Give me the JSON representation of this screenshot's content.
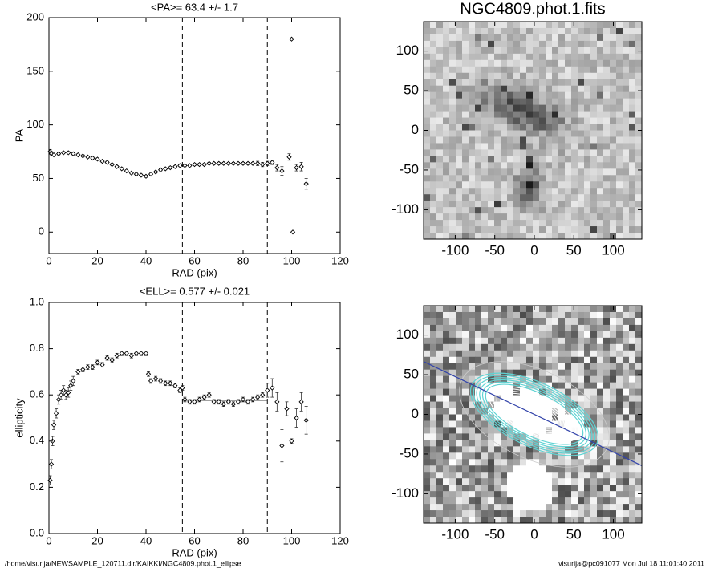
{
  "chart_data": [
    {
      "type": "scatter",
      "title": "<PA>=  63.4 +/-   1.7",
      "xlabel": "RAD (pix)",
      "ylabel": "PA",
      "x": [
        0.5,
        1,
        2,
        4,
        6,
        8,
        10,
        12,
        14,
        16,
        18,
        20,
        22,
        24,
        26,
        28,
        30,
        32,
        34,
        36,
        38,
        40,
        42,
        44,
        46,
        48,
        50,
        52,
        54,
        56,
        58,
        60,
        62,
        64,
        66,
        68,
        70,
        72,
        74,
        76,
        78,
        80,
        82,
        84,
        86,
        88,
        90,
        92,
        94,
        96,
        99,
        100,
        100.5,
        102,
        104,
        106
      ],
      "values": [
        75,
        73,
        72,
        73,
        74,
        74,
        73,
        72,
        71,
        70,
        69,
        68,
        66,
        65,
        63,
        61,
        59,
        57,
        55,
        54,
        53,
        52,
        54,
        56,
        58,
        59,
        60,
        61,
        62,
        62,
        62,
        63,
        63,
        63,
        64,
        64,
        64,
        64,
        64,
        64,
        64,
        64,
        64,
        64,
        64,
        63,
        64,
        65,
        60,
        57,
        70,
        180,
        0,
        60,
        61,
        45
      ],
      "errors": [
        2,
        2,
        1,
        1,
        1,
        1,
        1,
        1,
        1,
        1,
        1,
        1,
        1,
        1,
        1,
        1,
        1,
        1,
        1,
        1,
        1,
        1,
        1,
        1,
        1,
        1,
        1,
        1,
        1,
        1,
        1,
        1,
        1,
        1,
        1,
        1,
        1,
        1,
        1,
        1,
        1,
        1,
        1,
        1,
        2,
        2,
        2,
        2,
        3,
        4,
        3,
        null,
        null,
        3,
        4,
        5
      ],
      "xlim": [
        0,
        120
      ],
      "ylim": [
        -20,
        200
      ],
      "xticks": [
        0,
        20,
        40,
        60,
        80,
        100,
        120
      ],
      "yticks": [
        0,
        50,
        100,
        150,
        200
      ],
      "vlines": [
        55,
        90
      ],
      "mean_line": {
        "y": 63.4,
        "x": [
          55,
          90
        ]
      }
    },
    {
      "type": "scatter",
      "title": "<ELL>= 0.577 +/-  0.021",
      "xlabel": "RAD (pix)",
      "ylabel": "ellipticity",
      "x": [
        0.5,
        1,
        1.5,
        2,
        3,
        4,
        5,
        6,
        7,
        8,
        9,
        10,
        12,
        14,
        16,
        18,
        20,
        22,
        24,
        26,
        28,
        30,
        32,
        34,
        36,
        38,
        40,
        41,
        42,
        44,
        46,
        48,
        50,
        52,
        54,
        55,
        56,
        58,
        60,
        62,
        64,
        66,
        68,
        70,
        72,
        74,
        76,
        78,
        80,
        82,
        84,
        86,
        88,
        90,
        92,
        94,
        96,
        98,
        100,
        102,
        104,
        106
      ],
      "values": [
        0.23,
        0.3,
        0.4,
        0.47,
        0.52,
        0.58,
        0.6,
        0.62,
        0.6,
        0.61,
        0.64,
        0.66,
        0.7,
        0.71,
        0.72,
        0.72,
        0.74,
        0.73,
        0.76,
        0.75,
        0.77,
        0.78,
        0.78,
        0.77,
        0.78,
        0.78,
        0.78,
        0.69,
        0.66,
        0.67,
        0.66,
        0.65,
        0.65,
        0.64,
        0.62,
        0.63,
        0.58,
        0.57,
        0.57,
        0.58,
        0.59,
        0.6,
        0.57,
        0.57,
        0.56,
        0.57,
        0.56,
        0.57,
        0.58,
        0.57,
        0.58,
        0.59,
        0.6,
        0.62,
        0.63,
        0.57,
        0.38,
        0.54,
        0.4,
        0.5,
        0.57,
        0.49
      ],
      "errors": [
        0.02,
        0.02,
        0.02,
        0.02,
        0.02,
        0.02,
        0.02,
        0.02,
        0.02,
        0.02,
        0.02,
        0.02,
        0.01,
        0.01,
        0.01,
        0.01,
        0.01,
        0.01,
        0.01,
        0.01,
        0.01,
        0.01,
        0.01,
        0.01,
        0.01,
        0.01,
        0.01,
        0.01,
        0.01,
        0.01,
        0.01,
        0.01,
        0.01,
        0.01,
        0.01,
        0.01,
        0.01,
        0.01,
        0.01,
        0.01,
        0.01,
        0.01,
        0.01,
        0.01,
        0.01,
        0.01,
        0.01,
        0.01,
        0.01,
        0.01,
        0.01,
        0.01,
        0.01,
        0.03,
        0.04,
        0.04,
        0.07,
        0.03,
        0.01,
        0.04,
        0.04,
        0.06
      ],
      "xlim": [
        0,
        120
      ],
      "ylim": [
        0,
        1
      ],
      "xticks": [
        0,
        20,
        40,
        60,
        80,
        100,
        120
      ],
      "yticks": [
        {
          "value": 0,
          "label": "0.0"
        },
        {
          "value": 0.2,
          "label": "0.2"
        },
        {
          "value": 0.4,
          "label": "0.4"
        },
        {
          "value": 0.6,
          "label": "0.6"
        },
        {
          "value": 0.8,
          "label": "0.8"
        },
        {
          "value": 1,
          "label": "1.0"
        }
      ],
      "vlines": [
        55,
        90
      ],
      "mean_line": {
        "y": 0.577,
        "x": [
          55,
          90
        ]
      }
    },
    {
      "type": "image",
      "title": "NGC4809.phot.1.fits",
      "xlim": [
        -140,
        136
      ],
      "ylim": [
        -137,
        137
      ],
      "xticks": [
        -100,
        -50,
        0,
        50,
        100
      ],
      "yticks": [
        -100,
        -50,
        0,
        50,
        100
      ]
    },
    {
      "type": "image",
      "xlim": [
        -140,
        136
      ],
      "ylim": [
        -137,
        137
      ],
      "xticks": [
        -100,
        -50,
        0,
        50,
        100
      ],
      "yticks": [
        -100,
        -50,
        0,
        50,
        100
      ]
    }
  ],
  "footer": {
    "left": "/home/visurija/NEWSAMPLE_120711.dir/KAIKKI/NGC4809.phot.1_ellipse",
    "right": "visurija@pc091077  Mon Jul 18 11:01:40 2011"
  }
}
